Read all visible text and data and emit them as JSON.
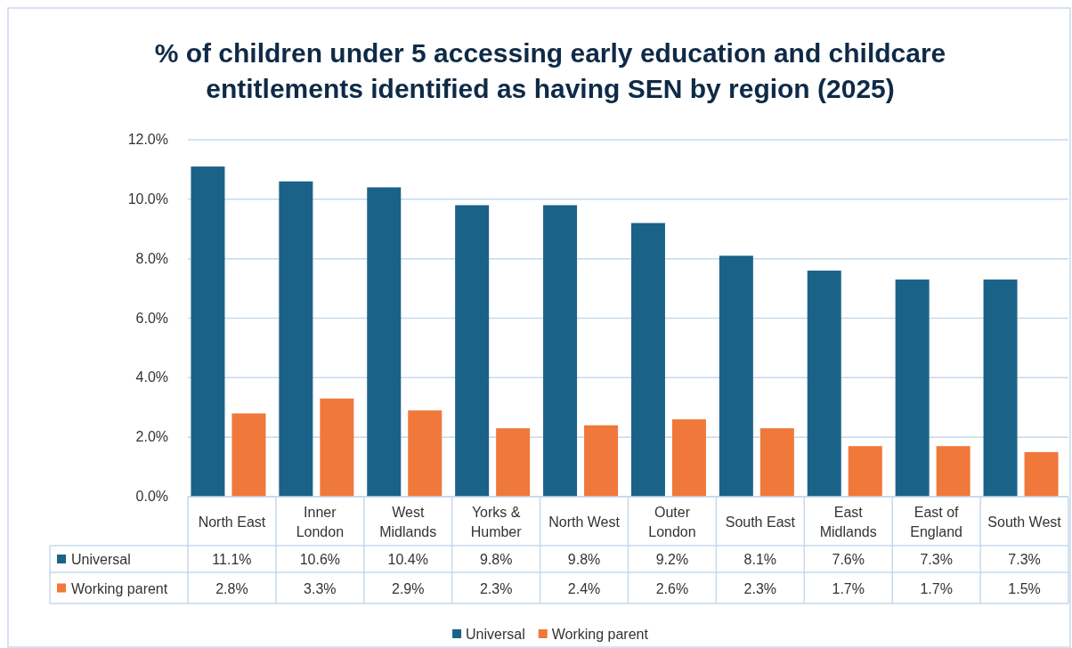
{
  "chart_data": {
    "type": "bar",
    "title": "% of children under 5 accessing early education and childcare entitlements identified as having SEN by region (2025)",
    "categories": [
      "North East",
      "Inner London",
      "West Midlands",
      "Yorks & Humber",
      "North West",
      "Outer London",
      "South East",
      "East Midlands",
      "East of England",
      "South West"
    ],
    "series": [
      {
        "name": "Universal",
        "color": "#1b6289",
        "values": [
          11.1,
          10.6,
          10.4,
          9.8,
          9.8,
          9.2,
          8.1,
          7.6,
          7.3,
          7.3
        ],
        "value_labels": [
          "11.1%",
          "10.6%",
          "10.4%",
          "9.8%",
          "9.8%",
          "9.2%",
          "8.1%",
          "7.6%",
          "7.3%",
          "7.3%"
        ]
      },
      {
        "name": "Working parent",
        "color": "#f0783a",
        "values": [
          2.8,
          3.3,
          2.9,
          2.3,
          2.4,
          2.6,
          2.3,
          1.7,
          1.7,
          1.5
        ],
        "value_labels": [
          "2.8%",
          "3.3%",
          "2.9%",
          "2.3%",
          "2.4%",
          "2.6%",
          "2.3%",
          "1.7%",
          "1.7%",
          "1.5%"
        ]
      }
    ],
    "ylim": [
      0,
      12
    ],
    "yticks": [
      {
        "value": 0,
        "label": "0.0%"
      },
      {
        "value": 2,
        "label": "2.0%"
      },
      {
        "value": 4,
        "label": "4.0%"
      },
      {
        "value": 6,
        "label": "6.0%"
      },
      {
        "value": 8,
        "label": "8.0%"
      },
      {
        "value": 10,
        "label": "10.0%"
      },
      {
        "value": 12,
        "label": "12.0%"
      }
    ],
    "grid": "y",
    "legend": "bottom"
  }
}
